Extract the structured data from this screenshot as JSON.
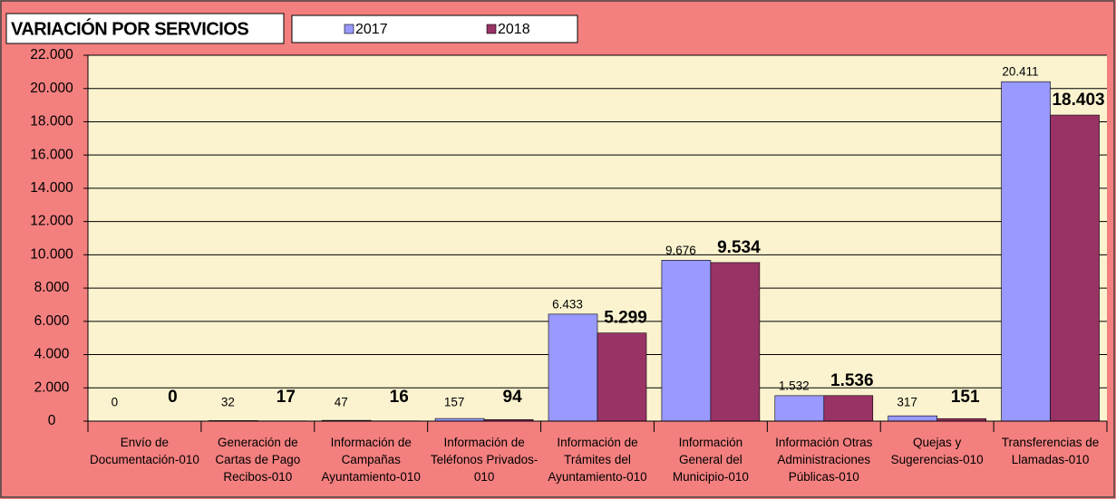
{
  "chart_data": {
    "type": "bar",
    "title": "VARIACIÓN POR SERVICIOS",
    "categories": [
      "Envío de Documentación-010",
      "Generación de Cartas de Pago Recibos-010",
      "Información de Campañas Ayuntamiento-010",
      "Información de Teléfonos Privados-010",
      "Información de Trámites del Ayuntamiento-010",
      "Información General del Municipio-010",
      "Información Otras Administraciones Públicas-010",
      "Quejas y Sugerencias-010",
      "Transferencias de Llamadas-010"
    ],
    "series": [
      {
        "name": "2017",
        "color": "#9999ff",
        "values": [
          0,
          32,
          47,
          157,
          6433,
          9676,
          1532,
          317,
          20411
        ],
        "value_labels": [
          "0",
          "32",
          "47",
          "157",
          "6.433",
          "9.676",
          "1.532",
          "317",
          "20.411"
        ]
      },
      {
        "name": "2018",
        "color": "#993366",
        "values": [
          0,
          17,
          16,
          94,
          5299,
          9534,
          1536,
          151,
          18403
        ],
        "value_labels": [
          "0",
          "17",
          "16",
          "94",
          "5.299",
          "9.534",
          "1.536",
          "151",
          "18.403"
        ]
      }
    ],
    "ylim": [
      0,
      22000
    ],
    "yticks": [
      0,
      {
        "value": 2000,
        "label": "2.000"
      },
      {
        "value": 4000,
        "label": "4.000"
      },
      {
        "value": 6000,
        "label": "6.000"
      },
      {
        "value": 8000,
        "label": "8.000"
      },
      {
        "value": 10000,
        "label": "10.000"
      },
      {
        "value": 12000,
        "label": "12.000"
      },
      {
        "value": 14000,
        "label": "14.000"
      },
      {
        "value": 16000,
        "label": "16.000"
      },
      {
        "value": 18000,
        "label": "18.000"
      },
      {
        "value": 20000,
        "label": "20.000"
      },
      {
        "value": 22000,
        "label": "22.000"
      }
    ],
    "grid": true
  }
}
